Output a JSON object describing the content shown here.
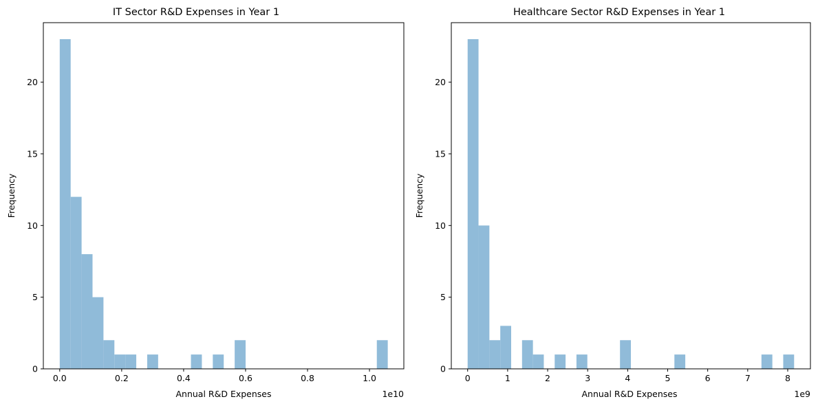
{
  "chart_data": [
    {
      "type": "bar",
      "title": "IT Sector R&D Expenses in Year 1",
      "xlabel": "Annual R&D Expenses",
      "ylabel": "Frequency",
      "x_offset_text": "1e10",
      "xlim": [
        -0.0529,
        1.1109
      ],
      "ylim": [
        0,
        24.15
      ],
      "x_ticks": [
        0.0,
        0.2,
        0.4,
        0.6,
        0.8,
        1.0
      ],
      "x_tick_labels": [
        "0.0",
        "0.2",
        "0.4",
        "0.6",
        "0.8",
        "1.0"
      ],
      "y_ticks": [
        0,
        5,
        10,
        15,
        20
      ],
      "y_tick_labels": [
        "0",
        "5",
        "10",
        "15",
        "20"
      ],
      "bin_edges": [
        0.0,
        0.0353,
        0.0706,
        0.1059,
        0.1412,
        0.1765,
        0.2118,
        0.2471,
        0.2824,
        0.3177,
        0.353,
        0.3883,
        0.4236,
        0.4589,
        0.4942,
        0.5295,
        0.5648,
        0.6001,
        0.6354,
        0.6707,
        0.706,
        0.7413,
        0.7766,
        0.8119,
        0.8472,
        0.8825,
        0.9178,
        0.9531,
        0.9884,
        1.0237,
        1.059
      ],
      "values": [
        23,
        12,
        8,
        5,
        2,
        1,
        1,
        0,
        1,
        0,
        0,
        0,
        1,
        0,
        1,
        0,
        2,
        0,
        0,
        0,
        0,
        0,
        0,
        0,
        0,
        0,
        0,
        0,
        0,
        2
      ],
      "color": "#90bbd9",
      "grid": false
    },
    {
      "type": "bar",
      "title": "Healthcare Sector R&D Expenses in Year 1",
      "xlabel": "Annual R&D Expenses",
      "ylabel": "Frequency",
      "x_offset_text": "1e9",
      "xlim": [
        -0.408,
        8.568
      ],
      "ylim": [
        0,
        24.15
      ],
      "x_ticks": [
        0,
        1,
        2,
        3,
        4,
        5,
        6,
        7,
        8
      ],
      "x_tick_labels": [
        "0",
        "1",
        "2",
        "3",
        "4",
        "5",
        "6",
        "7",
        "8"
      ],
      "y_ticks": [
        0,
        5,
        10,
        15,
        20
      ],
      "y_tick_labels": [
        "0",
        "5",
        "10",
        "15",
        "20"
      ],
      "bin_edges": [
        0.0,
        0.272,
        0.544,
        0.816,
        1.088,
        1.36,
        1.632,
        1.904,
        2.176,
        2.448,
        2.72,
        2.992,
        3.264,
        3.536,
        3.808,
        4.08,
        4.352,
        4.624,
        4.896,
        5.168,
        5.44,
        5.712,
        5.984,
        6.256,
        6.528,
        6.8,
        7.072,
        7.344,
        7.616,
        7.888,
        8.16
      ],
      "values": [
        23,
        10,
        2,
        3,
        0,
        2,
        1,
        0,
        1,
        0,
        1,
        0,
        0,
        0,
        2,
        0,
        0,
        0,
        0,
        1,
        0,
        0,
        0,
        0,
        0,
        0,
        0,
        1,
        0,
        1
      ],
      "color": "#90bbd9",
      "grid": false
    }
  ]
}
